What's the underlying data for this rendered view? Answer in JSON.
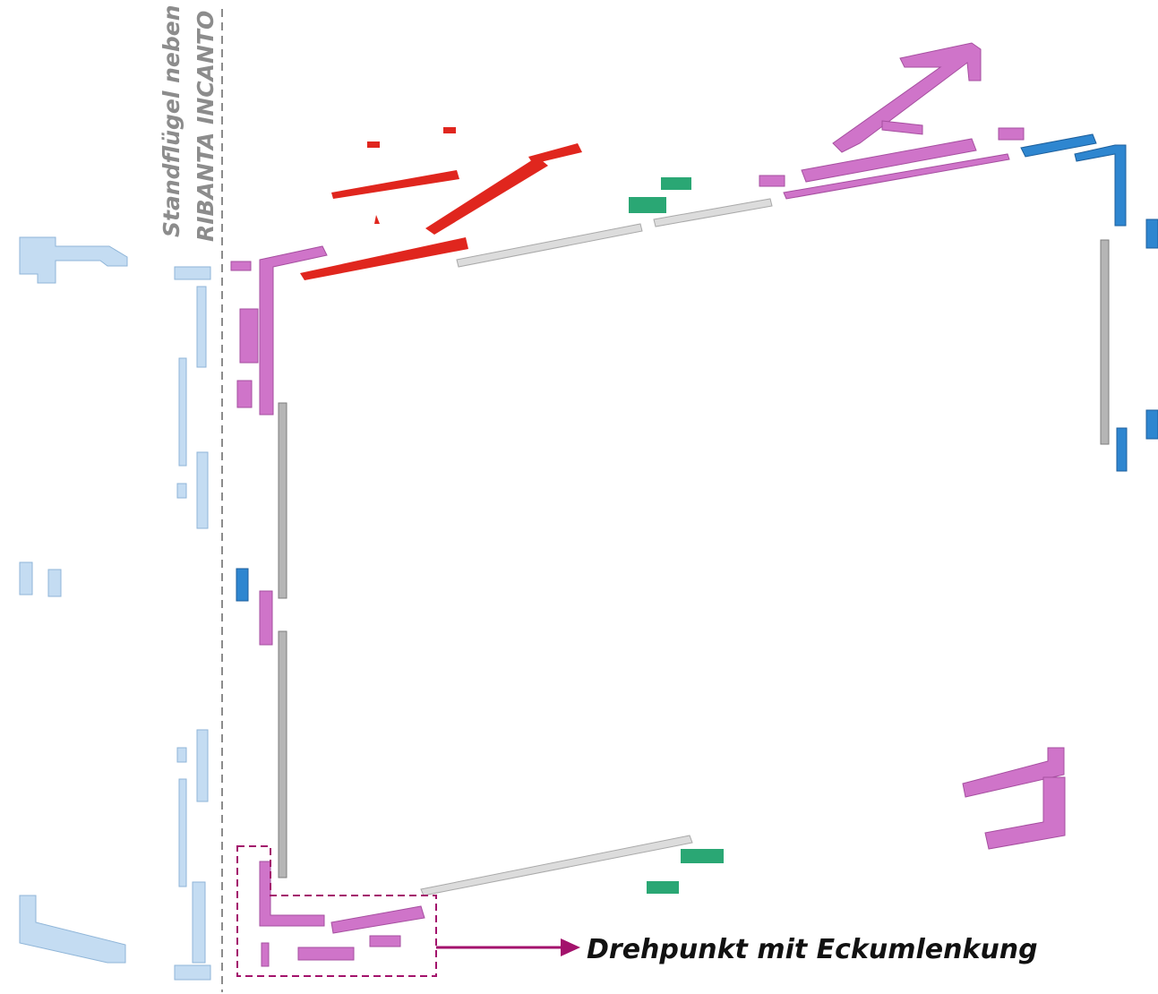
{
  "side_label": {
    "line1": "Standflügel neben",
    "line2": "RIBANTA INCANTO"
  },
  "callout": "Drehpunkt mit Eckumlenkung"
}
